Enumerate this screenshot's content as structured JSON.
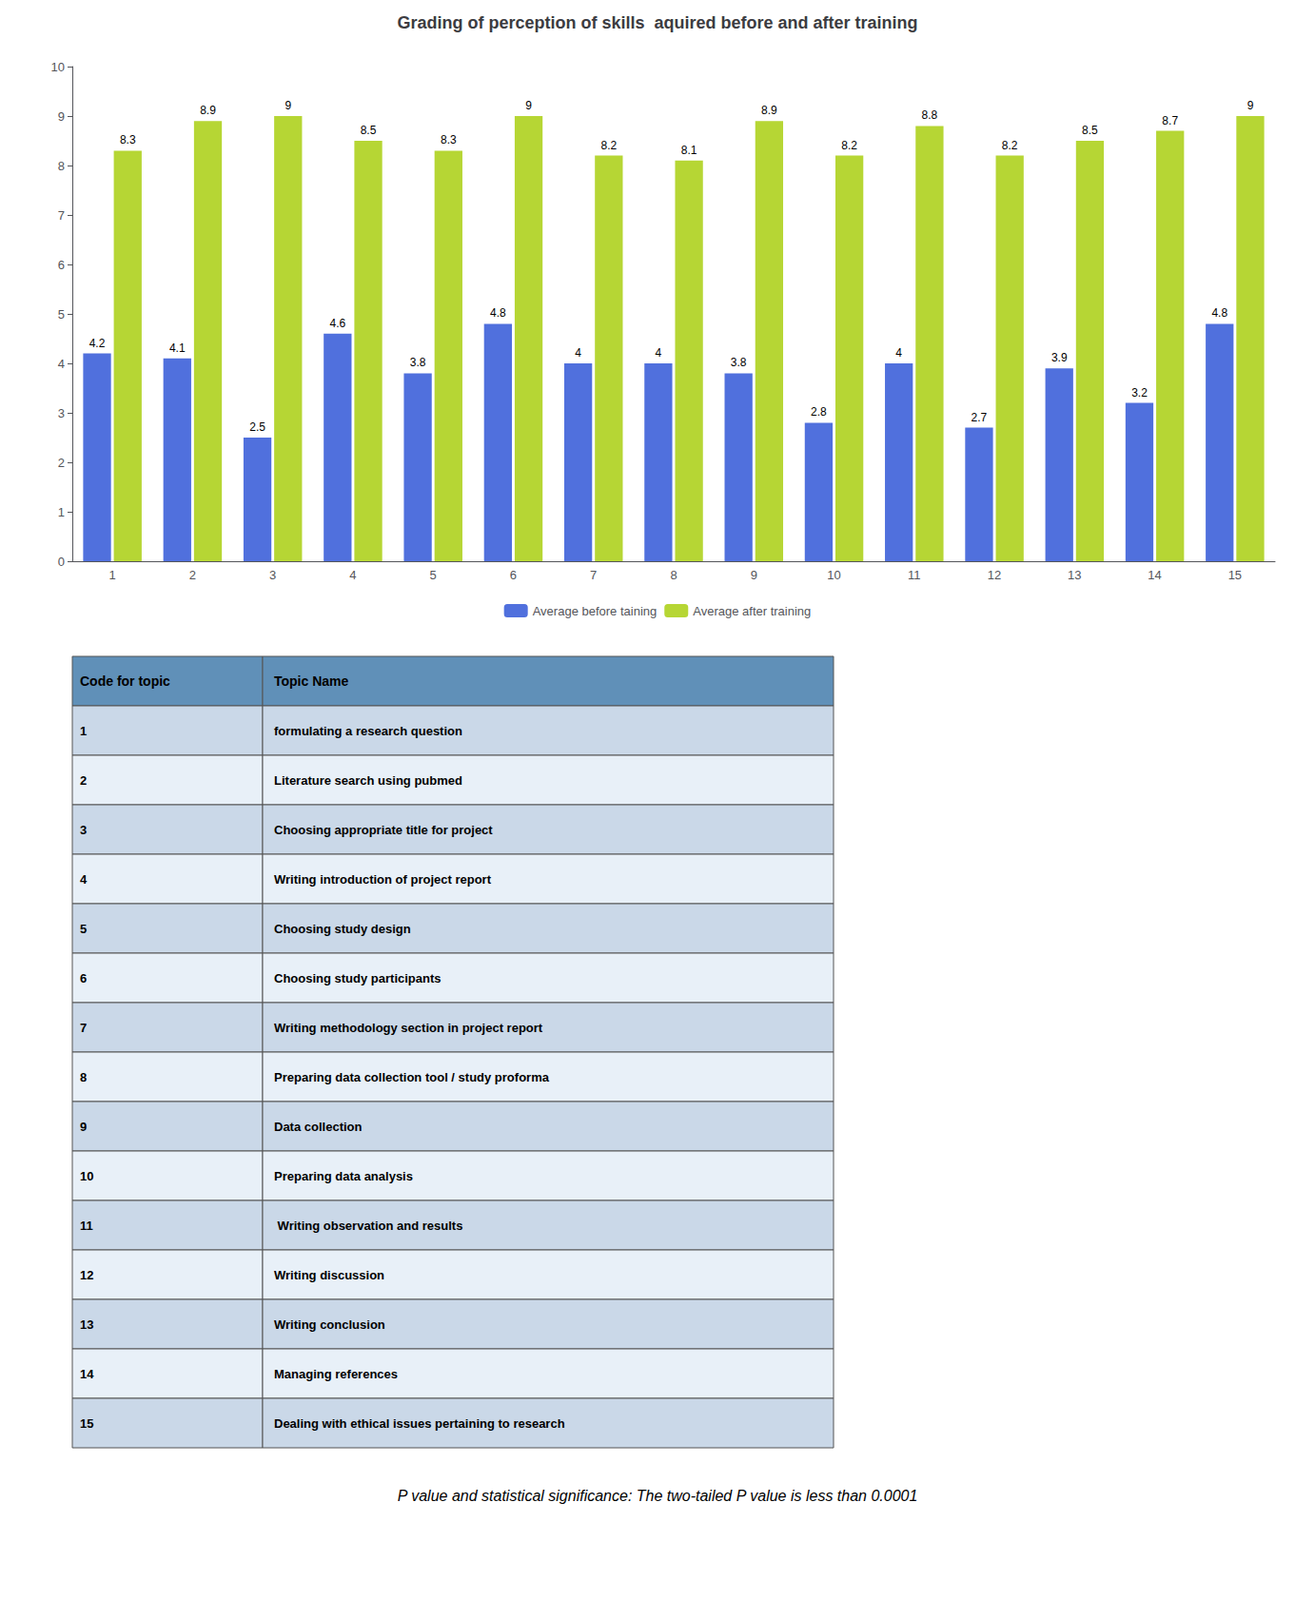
{
  "chart_data": {
    "type": "bar",
    "title": "Grading of perception of skills  aquired before and after training",
    "categories": [
      "1",
      "2",
      "3",
      "4",
      "5",
      "6",
      "7",
      "8",
      "9",
      "10",
      "11",
      "12",
      "13",
      "14",
      "15"
    ],
    "series": [
      {
        "name": "Average before taining",
        "values": [
          4.2,
          4.1,
          2.5,
          4.6,
          3.8,
          4.8,
          4.0,
          4.0,
          3.8,
          2.8,
          4.0,
          2.7,
          3.9,
          3.2,
          4.8
        ]
      },
      {
        "name": "Average after training",
        "values": [
          8.3,
          8.9,
          9.0,
          8.5,
          8.3,
          9.0,
          8.2,
          8.1,
          8.9,
          8.2,
          8.8,
          8.2,
          8.5,
          8.7,
          9.0
        ]
      }
    ],
    "ylim": [
      0,
      10
    ],
    "yticks": [
      0,
      1,
      2,
      3,
      4,
      5,
      6,
      7,
      8,
      9,
      10
    ],
    "grid": false,
    "legend": "bottom",
    "data_labels": true,
    "annotations": [
      "P value and statistical significance: The two-tailed P value is less than 0.0001"
    ]
  },
  "table": {
    "headers": [
      "Code for topic",
      "Topic Name"
    ],
    "rows": [
      [
        "1",
        "formulating a research question"
      ],
      [
        "2",
        "Literature search using pubmed"
      ],
      [
        "3",
        "Choosing appropriate title for project"
      ],
      [
        "4",
        "Writing introduction of project report"
      ],
      [
        "5",
        "Choosing study design"
      ],
      [
        "6",
        "Choosing study participants"
      ],
      [
        "7",
        "Writing methodology section in project report"
      ],
      [
        "8",
        "Preparing data collection tool / study proforma"
      ],
      [
        "9",
        "Data collection"
      ],
      [
        "10",
        "Preparing data analysis"
      ],
      [
        "11",
        " Writing observation and results"
      ],
      [
        "12",
        "Writing discussion"
      ],
      [
        "13",
        "Writing conclusion"
      ],
      [
        "14",
        "Managing references"
      ],
      [
        "15",
        "Dealing with ethical issues pertaining to research"
      ]
    ]
  }
}
